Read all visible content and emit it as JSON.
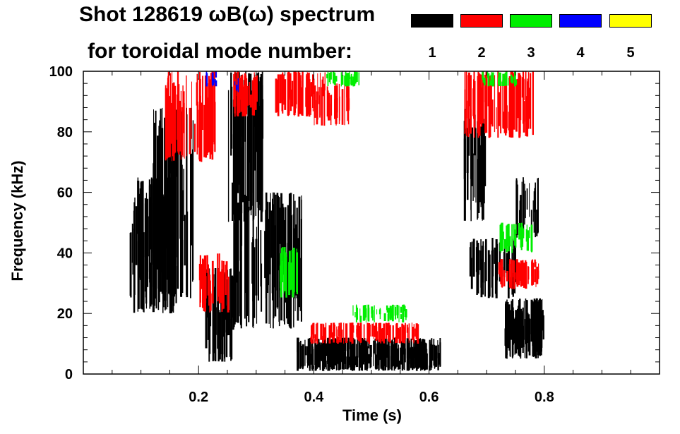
{
  "title_line1": "Shot 128619 ωB(ω) spectrum",
  "title_line2": "for toroidal mode number:",
  "legend": [
    {
      "n": "1",
      "color": "#000000"
    },
    {
      "n": "2",
      "color": "#ff0000"
    },
    {
      "n": "3",
      "color": "#00ee00"
    },
    {
      "n": "4",
      "color": "#0000ff"
    },
    {
      "n": "5",
      "color": "#ffff00"
    }
  ],
  "chart_data": {
    "type": "heatmap",
    "title": "Shot 128619 ωB(ω) spectrum for toroidal mode number",
    "xlabel": "Time (s)",
    "ylabel": "Frequency (kHz)",
    "xlim": [
      0.0,
      1.0
    ],
    "ylim": [
      0,
      100
    ],
    "xticks": [
      0.2,
      0.4,
      0.6,
      0.8
    ],
    "xtick_labels": [
      "0.2",
      "0.4",
      "0.6",
      "0.8"
    ],
    "yticks": [
      0,
      20,
      40,
      60,
      80,
      100
    ],
    "ytick_labels": [
      "0",
      "20",
      "40",
      "60",
      "80",
      "100"
    ],
    "series": [
      {
        "name": "n=1",
        "mode": 1,
        "color": "#000000",
        "regions": [
          {
            "t": [
              0.08,
              0.16
            ],
            "f": [
              20,
              65
            ],
            "density": 0.8
          },
          {
            "t": [
              0.12,
              0.19
            ],
            "f": [
              25,
              88
            ],
            "density": 0.6
          },
          {
            "t": [
              0.21,
              0.26
            ],
            "f": [
              4,
              35
            ],
            "density": 0.7
          },
          {
            "t": [
              0.25,
              0.31
            ],
            "f": [
              50,
              100
            ],
            "density": 0.8
          },
          {
            "t": [
              0.26,
              0.38
            ],
            "f": [
              15,
              60
            ],
            "density": 0.5
          },
          {
            "t": [
              0.37,
              0.62
            ],
            "f": [
              1,
              12
            ],
            "density": 0.9
          },
          {
            "t": [
              0.66,
              0.7
            ],
            "f": [
              50,
              88
            ],
            "density": 0.6
          },
          {
            "t": [
              0.67,
              0.75
            ],
            "f": [
              25,
              45
            ],
            "density": 0.4
          },
          {
            "t": [
              0.73,
              0.8
            ],
            "f": [
              5,
              25
            ],
            "density": 0.9
          },
          {
            "t": [
              0.75,
              0.79
            ],
            "f": [
              45,
              65
            ],
            "density": 0.4
          }
        ]
      },
      {
        "name": "n=2",
        "mode": 2,
        "color": "#ff0000",
        "regions": [
          {
            "t": [
              0.14,
              0.23
            ],
            "f": [
              70,
              100
            ],
            "density": 0.5
          },
          {
            "t": [
              0.2,
              0.25
            ],
            "f": [
              20,
              40
            ],
            "density": 0.4
          },
          {
            "t": [
              0.26,
              0.3
            ],
            "f": [
              85,
              100
            ],
            "density": 0.6
          },
          {
            "t": [
              0.33,
              0.42
            ],
            "f": [
              85,
              100
            ],
            "density": 0.5
          },
          {
            "t": [
              0.4,
              0.46
            ],
            "f": [
              82,
              96
            ],
            "density": 0.4
          },
          {
            "t": [
              0.39,
              0.58
            ],
            "f": [
              10,
              17
            ],
            "density": 0.4
          },
          {
            "t": [
              0.66,
              0.78
            ],
            "f": [
              78,
              100
            ],
            "density": 0.5
          },
          {
            "t": [
              0.72,
              0.79
            ],
            "f": [
              28,
              38
            ],
            "density": 0.5
          }
        ]
      },
      {
        "name": "n=3",
        "mode": 3,
        "color": "#00ee00",
        "regions": [
          {
            "t": [
              0.34,
              0.37
            ],
            "f": [
              25,
              42
            ],
            "density": 0.6
          },
          {
            "t": [
              0.42,
              0.48
            ],
            "f": [
              95,
              100
            ],
            "density": 0.4
          },
          {
            "t": [
              0.46,
              0.56
            ],
            "f": [
              17,
              23
            ],
            "density": 0.3
          },
          {
            "t": [
              0.72,
              0.78
            ],
            "f": [
              40,
              50
            ],
            "density": 0.4
          },
          {
            "t": [
              0.69,
              0.75
            ],
            "f": [
              95,
              100
            ],
            "density": 0.3
          }
        ]
      },
      {
        "name": "n=4",
        "mode": 4,
        "color": "#0000ff",
        "regions": [
          {
            "t": [
              0.21,
              0.23
            ],
            "f": [
              95,
              100
            ],
            "density": 0.3
          },
          {
            "t": [
              0.26,
              0.27
            ],
            "f": [
              93,
              98
            ],
            "density": 0.3
          }
        ]
      },
      {
        "name": "n=5",
        "mode": 5,
        "color": "#ffff00",
        "regions": []
      }
    ]
  }
}
